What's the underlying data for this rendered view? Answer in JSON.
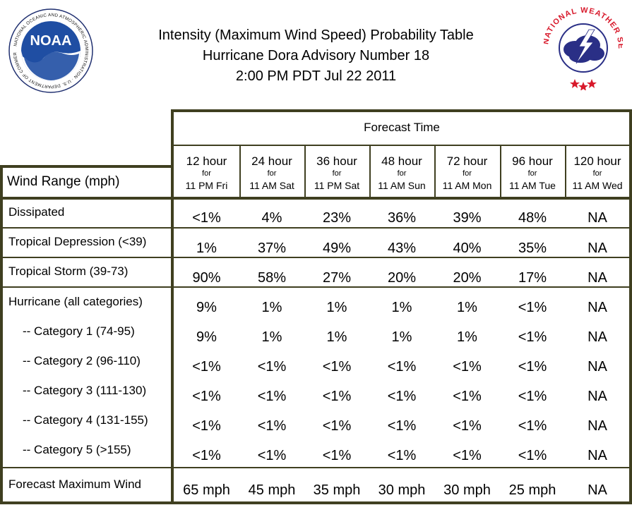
{
  "title": {
    "line1": "Intensity (Maximum Wind Speed) Probability Table",
    "line2": "Hurricane Dora Advisory Number 18",
    "line3": "2:00 PM PDT Jul 22 2011"
  },
  "logos": {
    "noaa": {
      "text": "NOAA",
      "ring": "NATIONAL OCEANIC AND ATMOSPHERIC ADMINISTRATION · U.S. DEPARTMENT OF COMMERCE"
    },
    "nws": {
      "ring": "NATIONAL WEATHER SERVICE"
    }
  },
  "colors": {
    "border": "#3f3f20",
    "noaa_blue": "#1f4ea3",
    "nws_red": "#d8192b",
    "nws_blue": "#2a2f86"
  },
  "table": {
    "forecast_time_label": "Forecast Time",
    "wind_range_label": "Wind Range (mph)",
    "columns": [
      {
        "hour": "12 hour",
        "for": "for",
        "when": "11 PM Fri"
      },
      {
        "hour": "24 hour",
        "for": "for",
        "when": "11 AM Sat"
      },
      {
        "hour": "36 hour",
        "for": "for",
        "when": "11 PM Sat"
      },
      {
        "hour": "48 hour",
        "for": "for",
        "when": "11 AM Sun"
      },
      {
        "hour": "72 hour",
        "for": "for",
        "when": "11 AM Mon"
      },
      {
        "hour": "96 hour",
        "for": "for",
        "when": "11 AM Tue"
      },
      {
        "hour": "120 hour",
        "for": "for",
        "when": "11 AM Wed"
      }
    ],
    "rows": [
      {
        "label": "Dissipated",
        "values": [
          "<1%",
          "4%",
          "23%",
          "36%",
          "39%",
          "48%",
          "NA"
        ]
      },
      {
        "label": "Tropical Depression (<39)",
        "values": [
          "1%",
          "37%",
          "49%",
          "43%",
          "40%",
          "35%",
          "NA"
        ]
      },
      {
        "label": "Tropical Storm (39-73)",
        "values": [
          "90%",
          "58%",
          "27%",
          "20%",
          "20%",
          "17%",
          "NA"
        ]
      },
      {
        "label": "Hurricane (all categories)",
        "values": [
          "9%",
          "1%",
          "1%",
          "1%",
          "1%",
          "<1%",
          "NA"
        ]
      },
      {
        "label": "-- Category 1 (74-95)",
        "values": [
          "9%",
          "1%",
          "1%",
          "1%",
          "1%",
          "<1%",
          "NA"
        ]
      },
      {
        "label": "-- Category 2 (96-110)",
        "values": [
          "<1%",
          "<1%",
          "<1%",
          "<1%",
          "<1%",
          "<1%",
          "NA"
        ]
      },
      {
        "label": "-- Category 3 (111-130)",
        "values": [
          "<1%",
          "<1%",
          "<1%",
          "<1%",
          "<1%",
          "<1%",
          "NA"
        ]
      },
      {
        "label": "-- Category 4 (131-155)",
        "values": [
          "<1%",
          "<1%",
          "<1%",
          "<1%",
          "<1%",
          "<1%",
          "NA"
        ]
      },
      {
        "label": "-- Category 5 (>155)",
        "values": [
          "<1%",
          "<1%",
          "<1%",
          "<1%",
          "<1%",
          "<1%",
          "NA"
        ]
      },
      {
        "label": "Forecast Maximum Wind",
        "values": [
          "65 mph",
          "45 mph",
          "35 mph",
          "30 mph",
          "30 mph",
          "25 mph",
          "NA"
        ]
      }
    ]
  }
}
